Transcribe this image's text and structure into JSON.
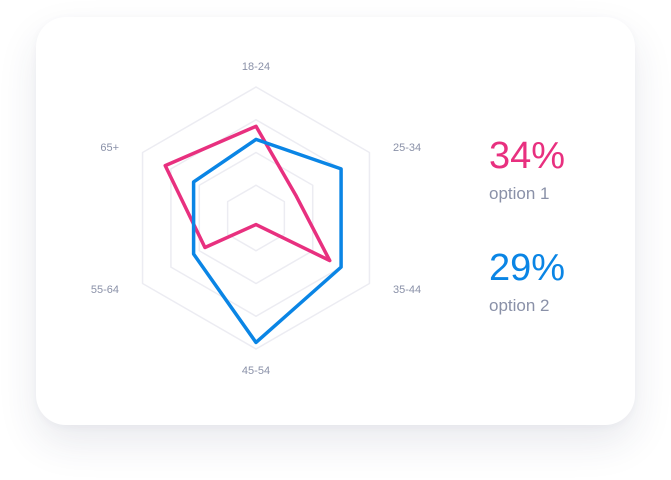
{
  "chart_data": {
    "type": "radar",
    "categories": [
      "18-24",
      "25-34",
      "35-44",
      "45-54",
      "55-64",
      "65+"
    ],
    "max": 100,
    "grid_levels": [
      0.25,
      0.5,
      0.75,
      1.0
    ],
    "series": [
      {
        "name": "option 1",
        "color": "#e8307f",
        "values": [
          70,
          35,
          65,
          5,
          45,
          80
        ]
      },
      {
        "name": "option 2",
        "color": "#0a85e5",
        "values": [
          60,
          75,
          75,
          95,
          55,
          55
        ]
      }
    ]
  },
  "legend": [
    {
      "value": "34%",
      "label": "option 1",
      "color": "#e8307f"
    },
    {
      "value": "29%",
      "label": "option 2",
      "color": "#0a85e5"
    }
  ]
}
